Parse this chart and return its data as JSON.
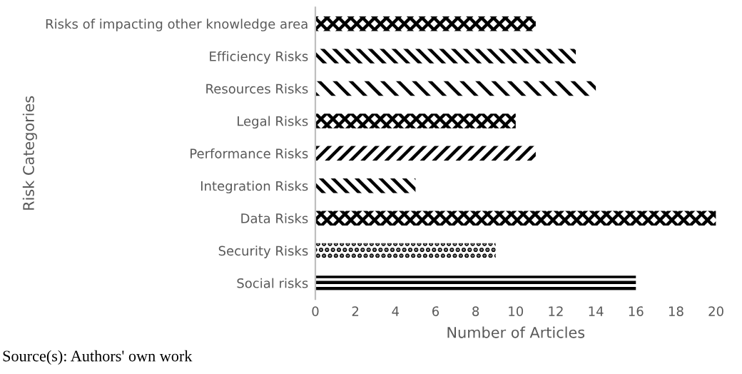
{
  "chart_data": {
    "type": "bar",
    "orientation": "horizontal",
    "xlabel": "Number of Articles",
    "ylabel": "Risk Categories",
    "categories": [
      "Risks of impacting other knowledge area",
      "Efficiency Risks",
      "Resources Risks",
      "Legal Risks",
      "Performance Risks",
      "Integration Risks",
      "Data Risks",
      "Security Risks",
      "Social risks"
    ],
    "values": [
      11,
      13,
      14,
      10,
      11,
      5,
      20,
      9,
      16
    ],
    "color": "#000000",
    "xlim": [
      0,
      20
    ],
    "xticks": [
      0,
      2,
      4,
      6,
      8,
      10,
      12,
      14,
      16,
      18,
      20
    ],
    "grid": false,
    "legend": false,
    "annotations": [
      "Source(s): Authors' own work"
    ]
  }
}
